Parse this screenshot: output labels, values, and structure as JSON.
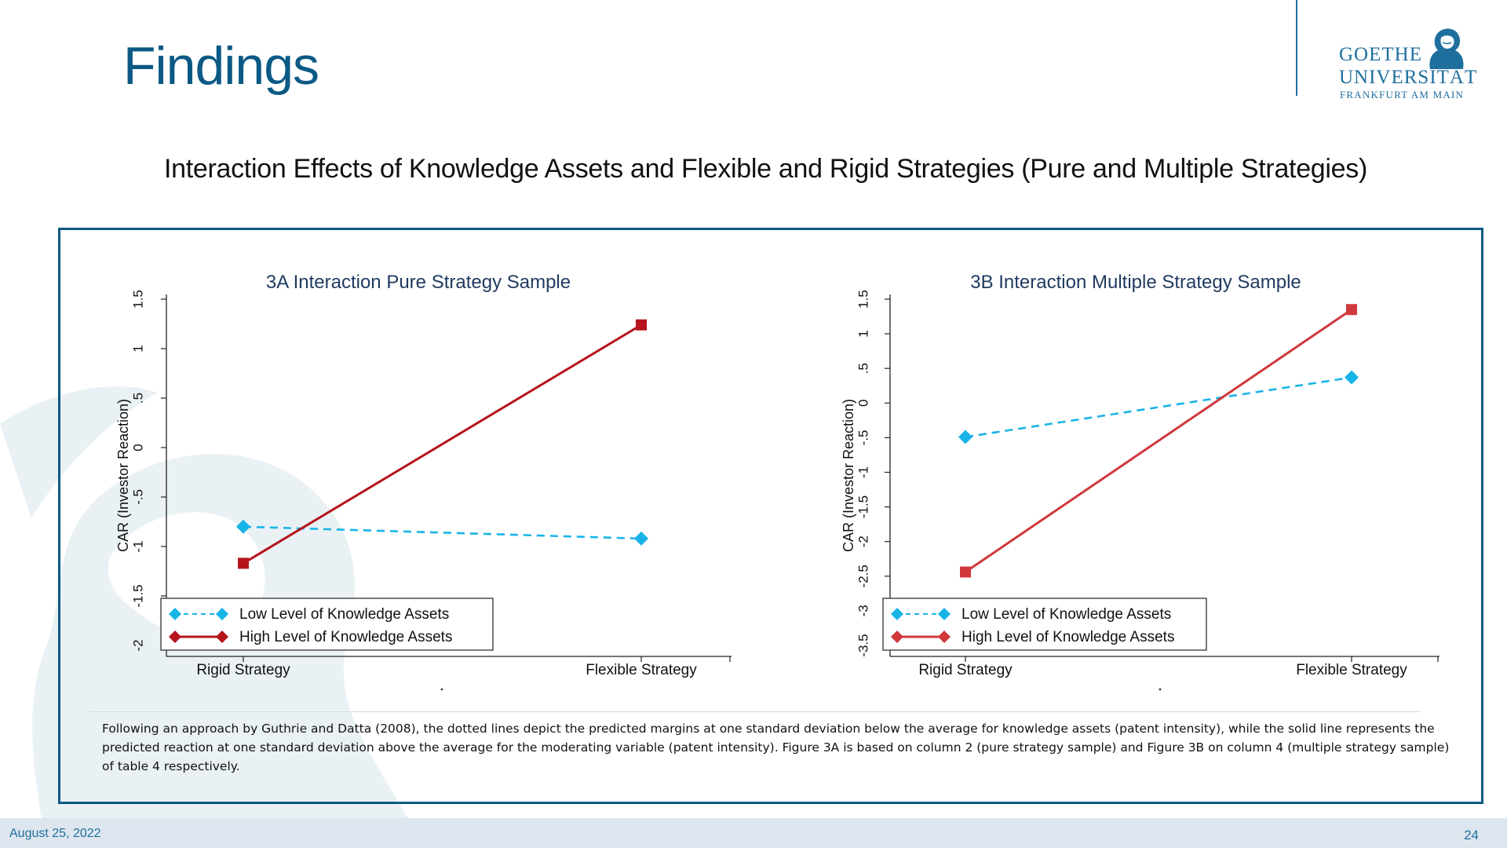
{
  "slide": {
    "title": "Findings",
    "subtitle": "Interaction Effects of Knowledge Assets and Flexible and Rigid Strategies (Pure and Multiple Strategies)",
    "caption": "Following an approach by Guthrie and Datta (2008), the dotted lines depict the predicted margins at one standard deviation below the average for knowledge assets (patent intensity), while the solid line represents the predicted reaction at one standard deviation above the average for the moderating variable (patent intensity). Figure 3A is based on column 2 (pure strategy sample) and Figure 3B on column 4 (multiple strategy sample) of table 4 respectively.",
    "date": "August 25, 2022",
    "page_number": "24"
  },
  "logo": {
    "line1": "GOETHE",
    "line2": "UNIVERSITÄT",
    "line3": "FRANKFURT AM MAIN",
    "icon": "goethe-portrait-icon"
  },
  "colors": {
    "brand_blue": "#0b5985",
    "low_series": "#18b4e8",
    "high_series_a": "#b5141c",
    "high_series_b": "#d0383c"
  },
  "chart_data": [
    {
      "type": "line",
      "title": "3A Interaction Pure Strategy Sample",
      "ylabel": "CAR (Investor Reaction)",
      "xlabel": "",
      "categories": [
        "Rigid Strategy",
        "Flexible Strategy"
      ],
      "ylim": [
        -2,
        1.5
      ],
      "yticks": [
        -2,
        -1.5,
        -1,
        -0.5,
        0,
        0.5,
        1,
        1.5
      ],
      "ytick_labels": [
        "-2",
        "-1.5",
        "-1",
        "-.5",
        "0",
        ".5",
        "1",
        "1.5"
      ],
      "grid": false,
      "legend_position": "bottom-left",
      "series": [
        {
          "name": "Low Level of Knowledge Assets",
          "values": [
            -0.8,
            -0.92
          ],
          "style": "dashed",
          "marker": "diamond"
        },
        {
          "name": "High Level of Knowledge Assets",
          "values": [
            -1.17,
            1.24
          ],
          "style": "solid",
          "marker": "square"
        }
      ]
    },
    {
      "type": "line",
      "title": "3B Interaction Multiple Strategy Sample",
      "ylabel": "CAR (Investor Reaction)",
      "xlabel": "",
      "categories": [
        "Rigid Strategy",
        "Flexible Strategy"
      ],
      "ylim": [
        -3.5,
        1.5
      ],
      "yticks": [
        -3.5,
        -3,
        -2.5,
        -2,
        -1.5,
        -1,
        -0.5,
        0,
        0.5,
        1,
        1.5
      ],
      "ytick_labels": [
        "-3.5",
        "-3",
        "-2.5",
        "-2",
        "-1.5",
        "-1",
        "-.5",
        "0",
        ".5",
        "1",
        "1.5"
      ],
      "grid": false,
      "legend_position": "bottom-left",
      "series": [
        {
          "name": "Low Level of Knowledge Assets",
          "values": [
            -0.49,
            0.37
          ],
          "style": "dashed",
          "marker": "diamond"
        },
        {
          "name": "High Level of Knowledge Assets",
          "values": [
            -2.44,
            1.35
          ],
          "style": "solid",
          "marker": "square"
        }
      ]
    }
  ]
}
